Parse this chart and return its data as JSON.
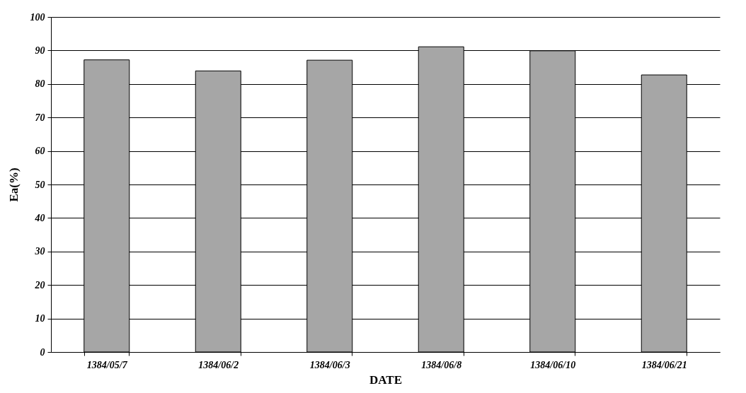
{
  "chart_data": {
    "type": "bar",
    "xlabel": "DATE",
    "ylabel": "Ea(%)",
    "categories": [
      "1384/05/7",
      "1384/06/2",
      "1384/06/3",
      "1384/06/8",
      "1384/06/10",
      "1384/06/21"
    ],
    "values": [
      87.2,
      83.9,
      87.1,
      91.1,
      89.9,
      82.7
    ],
    "color": "#a6a6a6",
    "ylim": [
      0,
      100
    ],
    "yticks": [
      0,
      10,
      20,
      30,
      40,
      50,
      60,
      70,
      80,
      90,
      100
    ],
    "grid": "y"
  }
}
